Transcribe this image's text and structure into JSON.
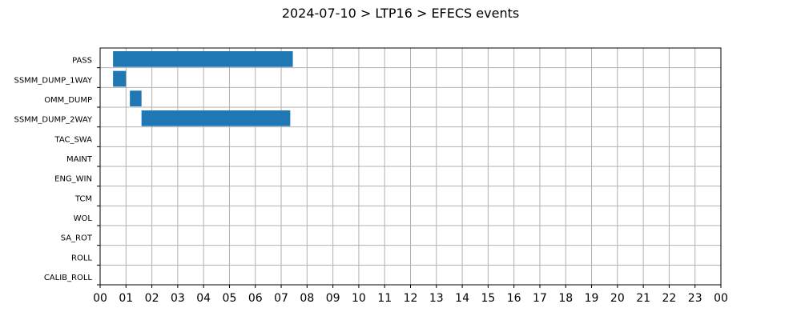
{
  "chart_data": {
    "type": "bar",
    "orientation": "horizontal",
    "title": "2024-07-10 > LTP16 > EFECS events",
    "xlabel": "",
    "ylabel": "",
    "categories": [
      "PASS",
      "SSMM_DUMP_1WAY",
      "OMM_DUMP",
      "SSMM_DUMP_2WAY",
      "TAC_SWA",
      "MAINT",
      "ENG_WIN",
      "TCM",
      "WOL",
      "SA_ROT",
      "ROLL",
      "CALIB_ROLL"
    ],
    "events": [
      {
        "category": "PASS",
        "start_hour": 0.5,
        "end_hour": 7.45
      },
      {
        "category": "SSMM_DUMP_1WAY",
        "start_hour": 0.5,
        "end_hour": 1.0
      },
      {
        "category": "OMM_DUMP",
        "start_hour": 1.15,
        "end_hour": 1.6
      },
      {
        "category": "SSMM_DUMP_2WAY",
        "start_hour": 1.6,
        "end_hour": 7.35
      }
    ],
    "xticks": [
      "00",
      "01",
      "02",
      "03",
      "04",
      "05",
      "06",
      "07",
      "08",
      "09",
      "10",
      "11",
      "12",
      "13",
      "14",
      "15",
      "16",
      "17",
      "18",
      "19",
      "20",
      "21",
      "22",
      "23",
      "00"
    ],
    "xlim": [
      0,
      24
    ],
    "grid": true,
    "bar_color": "#1f77b4"
  }
}
